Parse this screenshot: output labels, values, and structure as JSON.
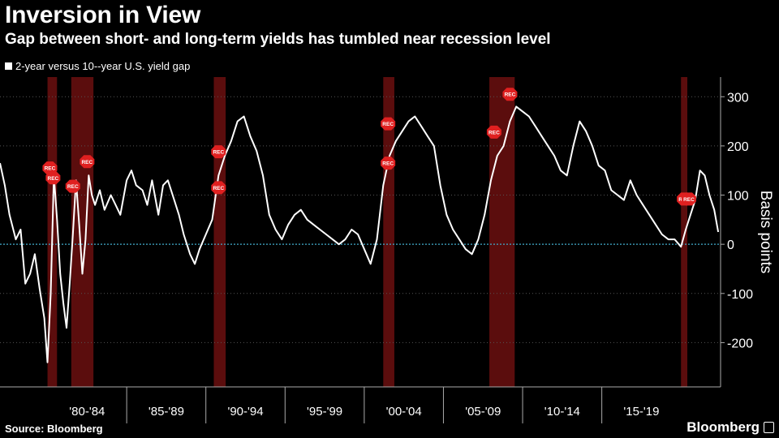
{
  "header": {
    "title": "Inversion in View",
    "subtitle": "Gap between short- and long-term yields has tumbled near recession level"
  },
  "legend": {
    "label": "2-year versus 10--year U.S. yield gap"
  },
  "footer": {
    "source": "Source: Bloomberg",
    "brand": "Bloomberg"
  },
  "colors": {
    "line": "#ffffff",
    "zero_line": "#3fa9c9",
    "recession": "#6b0f0f",
    "marker": "#e02020",
    "grid": "#555555",
    "background": "#000000"
  },
  "chart_data": {
    "type": "line",
    "title": "Inversion in View",
    "subtitle": "Gap between short- and long-term yields has tumbled near recession level",
    "ylabel": "Basis points",
    "ylim": [
      -290,
      340
    ],
    "yticks": [
      300,
      200,
      100,
      0,
      -100,
      -200
    ],
    "xlim": [
      1977.0,
      2022.5
    ],
    "x_tick_labels": [
      "'80-'84",
      "'85-'89",
      "'90-'94",
      "'95-'99",
      "'00-'04",
      "'05-'09",
      "'10-'14",
      "'15-'19"
    ],
    "x_label_positions": [
      1982.5,
      1987.5,
      1992.5,
      1997.5,
      2002.5,
      2007.5,
      2012.5,
      2017.5
    ],
    "x_dividers": [
      1985,
      1990,
      1995,
      2000,
      2005,
      2010,
      2015
    ],
    "recessions": [
      [
        1980.0,
        1980.6
      ],
      [
        1981.5,
        1982.9
      ],
      [
        1990.5,
        1991.25
      ],
      [
        2001.2,
        2001.9
      ],
      [
        2007.9,
        2009.5
      ],
      [
        2020.0,
        2020.4
      ]
    ],
    "rec_markers": [
      {
        "x": 1980.15,
        "y": 155,
        "label": "REC"
      },
      {
        "x": 1980.35,
        "y": 135,
        "label": "REC"
      },
      {
        "x": 1981.6,
        "y": 118,
        "label": "REC"
      },
      {
        "x": 1982.5,
        "y": 168,
        "label": "REC"
      },
      {
        "x": 1990.8,
        "y": 188,
        "label": "REC"
      },
      {
        "x": 1990.8,
        "y": 115,
        "label": "REC"
      },
      {
        "x": 2001.5,
        "y": 245,
        "label": "REC"
      },
      {
        "x": 2001.5,
        "y": 165,
        "label": "REC"
      },
      {
        "x": 2008.2,
        "y": 228,
        "label": "REC"
      },
      {
        "x": 2009.2,
        "y": 305,
        "label": "REC"
      },
      {
        "x": 2020.2,
        "y": 92,
        "label": "REC"
      },
      {
        "x": 2020.5,
        "y": 92,
        "label": "REC"
      }
    ],
    "series": [
      {
        "name": "2-year versus 10--year U.S. yield gap",
        "x": [
          1977.0,
          1977.3,
          1977.6,
          1978.0,
          1978.3,
          1978.6,
          1978.9,
          1979.2,
          1979.5,
          1979.8,
          1980.0,
          1980.2,
          1980.4,
          1980.6,
          1980.8,
          1981.0,
          1981.2,
          1981.4,
          1981.6,
          1981.8,
          1982.0,
          1982.2,
          1982.4,
          1982.6,
          1982.8,
          1983.0,
          1983.3,
          1983.6,
          1984.0,
          1984.3,
          1984.6,
          1985.0,
          1985.3,
          1985.6,
          1986.0,
          1986.3,
          1986.6,
          1987.0,
          1987.3,
          1987.6,
          1988.0,
          1988.3,
          1988.6,
          1989.0,
          1989.3,
          1989.6,
          1990.0,
          1990.4,
          1990.8,
          1991.2,
          1991.6,
          1992.0,
          1992.4,
          1992.8,
          1993.2,
          1993.6,
          1994.0,
          1994.4,
          1994.8,
          1995.2,
          1995.6,
          1996.0,
          1996.4,
          1996.8,
          1997.2,
          1997.6,
          1998.0,
          1998.4,
          1998.8,
          1999.2,
          1999.6,
          2000.0,
          2000.4,
          2000.8,
          2001.2,
          2001.6,
          2002.0,
          2002.4,
          2002.8,
          2003.2,
          2003.6,
          2004.0,
          2004.4,
          2004.8,
          2005.2,
          2005.6,
          2006.0,
          2006.4,
          2006.8,
          2007.2,
          2007.6,
          2008.0,
          2008.4,
          2008.8,
          2009.2,
          2009.6,
          2010.0,
          2010.4,
          2010.8,
          2011.2,
          2011.6,
          2012.0,
          2012.4,
          2012.8,
          2013.2,
          2013.6,
          2014.0,
          2014.4,
          2014.8,
          2015.2,
          2015.6,
          2016.0,
          2016.4,
          2016.8,
          2017.2,
          2017.6,
          2018.0,
          2018.4,
          2018.8,
          2019.2,
          2019.6,
          2020.0,
          2020.3,
          2020.6,
          2020.9,
          2021.2,
          2021.5,
          2021.8,
          2022.1,
          2022.35
        ],
        "values": [
          165,
          120,
          60,
          10,
          30,
          -80,
          -60,
          -20,
          -90,
          -150,
          -240,
          -100,
          140,
          50,
          -60,
          -120,
          -170,
          -80,
          20,
          130,
          40,
          -60,
          10,
          140,
          100,
          80,
          110,
          70,
          100,
          80,
          60,
          130,
          150,
          120,
          110,
          80,
          130,
          60,
          120,
          130,
          90,
          60,
          20,
          -20,
          -40,
          -10,
          20,
          50,
          140,
          180,
          210,
          250,
          260,
          220,
          190,
          140,
          60,
          30,
          10,
          40,
          60,
          70,
          50,
          40,
          30,
          20,
          10,
          0,
          10,
          30,
          20,
          -10,
          -40,
          10,
          120,
          180,
          210,
          230,
          250,
          260,
          240,
          220,
          200,
          120,
          60,
          30,
          10,
          -10,
          -20,
          10,
          60,
          130,
          180,
          200,
          250,
          280,
          270,
          260,
          240,
          220,
          200,
          180,
          150,
          140,
          200,
          250,
          230,
          200,
          160,
          150,
          110,
          100,
          90,
          130,
          100,
          80,
          60,
          40,
          20,
          10,
          10,
          -5,
          30,
          60,
          90,
          150,
          140,
          100,
          70,
          25
        ]
      }
    ]
  }
}
